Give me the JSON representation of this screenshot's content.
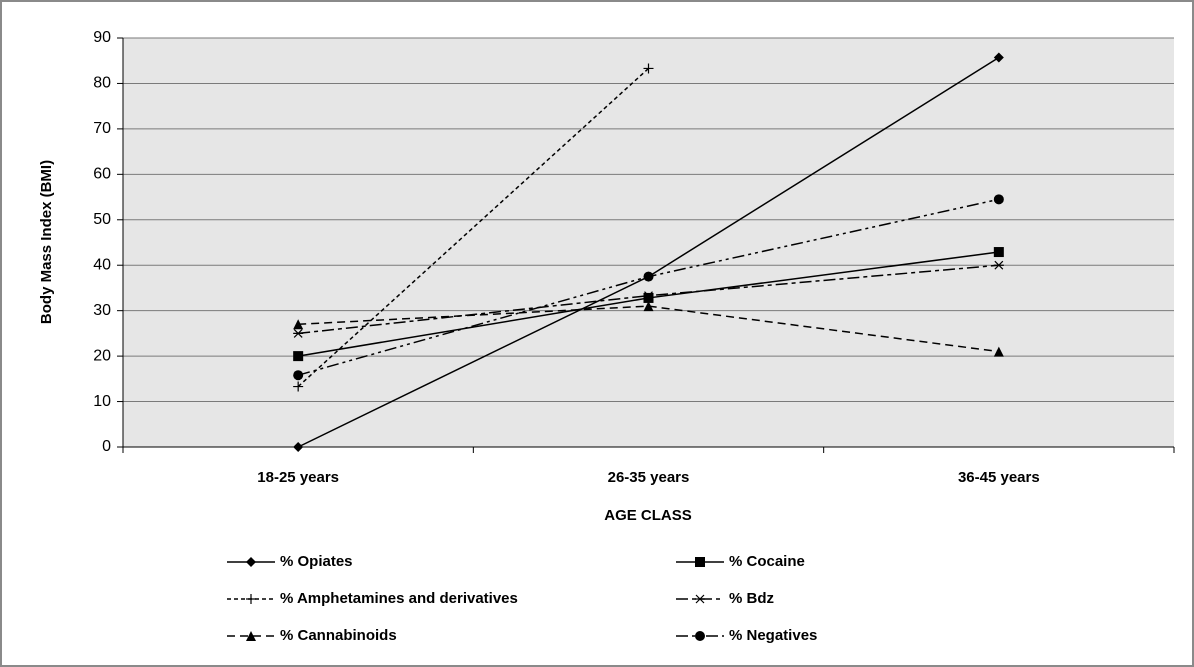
{
  "chart_data": {
    "type": "line",
    "y_label": "Body Mass Index (BMI)",
    "x_label": "AGE CLASS",
    "categories": [
      "18-25 years",
      "26-35 years",
      "36-45 years"
    ],
    "series": [
      {
        "name": "% Opiates",
        "color": "#000000",
        "marker": "diamond",
        "values": [
          0,
          37.5,
          85.7
        ]
      },
      {
        "name": "% Cocaine",
        "color": "#000000",
        "marker": "square",
        "values": [
          20,
          32.8,
          42.9
        ]
      },
      {
        "name": "% Amphetamines and derivatives",
        "color": "#000000",
        "marker": "plus",
        "values": [
          13.3,
          83.3,
          null
        ]
      },
      {
        "name": "% Bdz",
        "color": "#000000",
        "marker": "asterisk",
        "values": [
          25,
          33.3,
          40
        ]
      },
      {
        "name": "% Cannabinoids",
        "color": "#000000",
        "marker": "triangle",
        "values": [
          27,
          31,
          21
        ]
      },
      {
        "name": "% Negatives",
        "color": "#000000",
        "marker": "circle",
        "values": [
          15.8,
          37.5,
          54.5
        ]
      }
    ],
    "ylim": [
      0,
      90
    ],
    "yticks": [
      0,
      10,
      20,
      30,
      40,
      50,
      60,
      70,
      80,
      90
    ],
    "grid": true
  }
}
